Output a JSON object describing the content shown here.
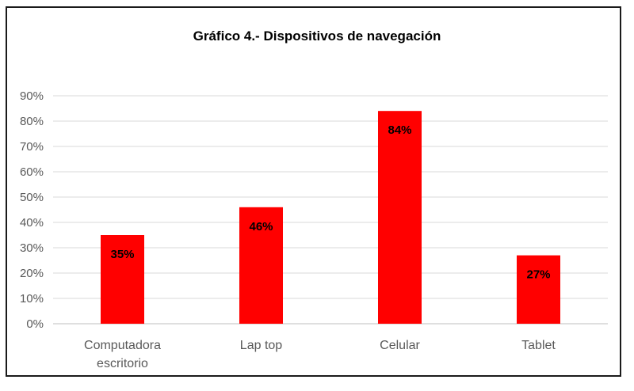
{
  "chart_data": {
    "type": "bar",
    "title": "Gráfico 4.- Dispositivos de navegación",
    "xlabel": "",
    "ylabel": "",
    "categories": [
      [
        "Computadora",
        "escritorio"
      ],
      [
        "Lap top"
      ],
      [
        "Celular"
      ],
      [
        "Tablet"
      ]
    ],
    "values": [
      35,
      46,
      84,
      27
    ],
    "data_labels": [
      "35%",
      "46%",
      "84%",
      "27%"
    ],
    "ylim": [
      0,
      90
    ],
    "yticks": [
      0,
      10,
      20,
      30,
      40,
      50,
      60,
      70,
      80,
      90
    ],
    "ytick_labels": [
      "0%",
      "10%",
      "20%",
      "30%",
      "40%",
      "50%",
      "60%",
      "70%",
      "80%",
      "90%"
    ],
    "grid": true,
    "legend": "none",
    "colors": {
      "bar": "#FF0000",
      "grid": "#D9D9D9",
      "axis": "#BFBFBF"
    }
  }
}
